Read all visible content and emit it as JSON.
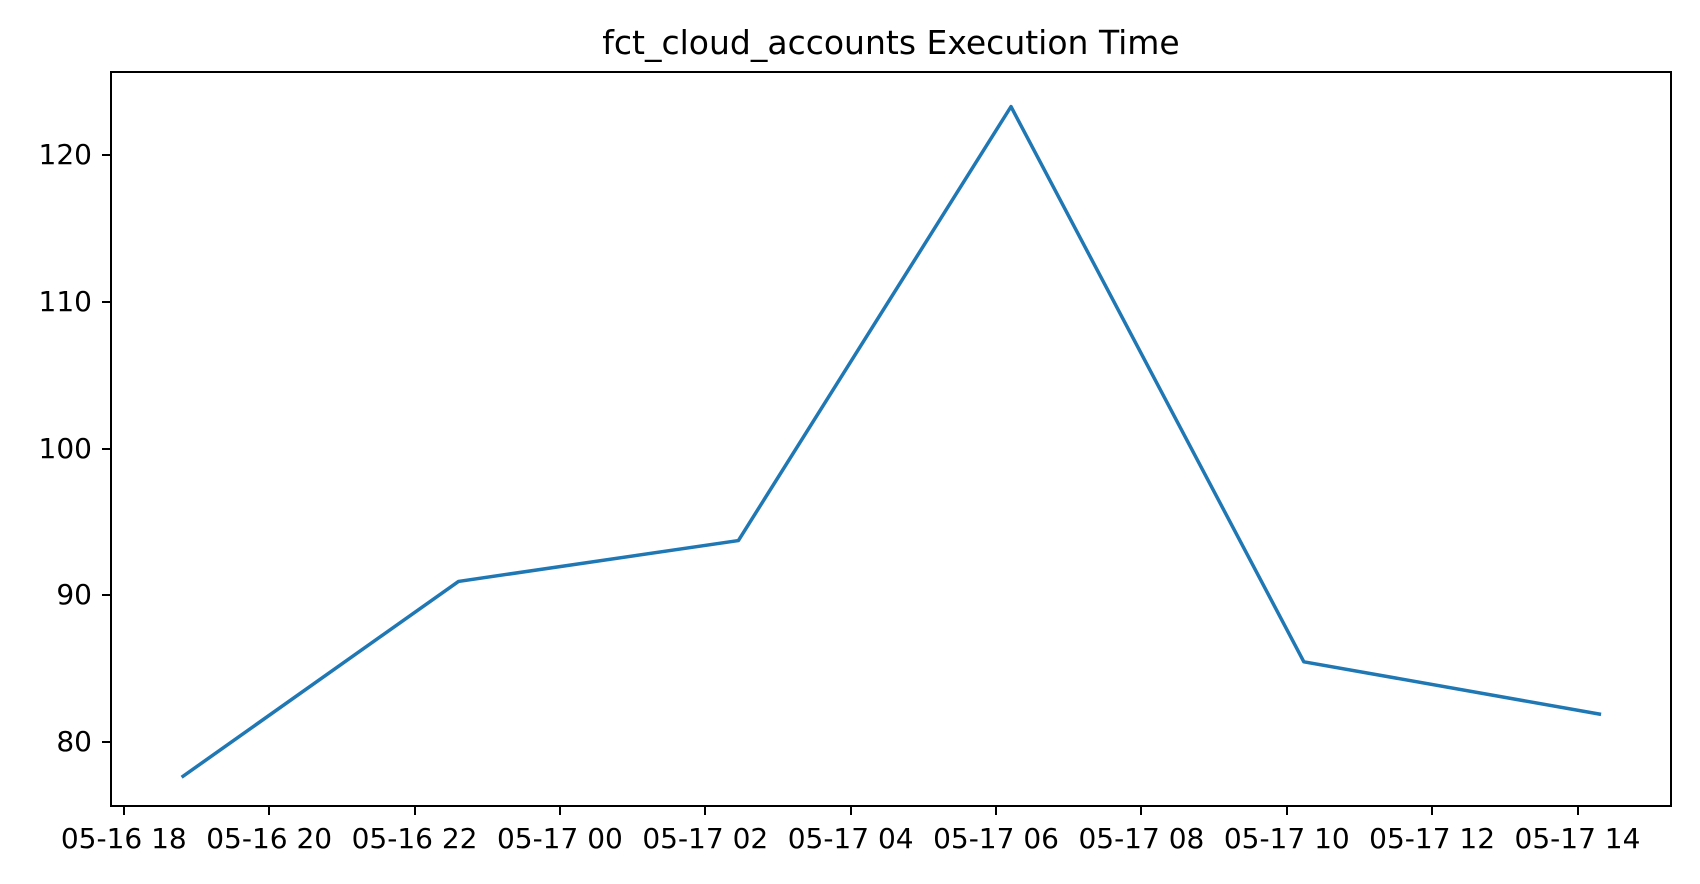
{
  "chart_data": {
    "type": "line",
    "title": "fct_cloud_accounts Execution Time",
    "xlabel": "",
    "ylabel": "",
    "grid": false,
    "legend_position": "none",
    "line_color": "#1f77b4",
    "line_width": 3.5,
    "x_unit": "hours since 05-16 18:00",
    "xlim_hours": [
      -0.19,
      21.3
    ],
    "ylim": [
      75.6,
      125.7
    ],
    "y_ticks": [
      80,
      90,
      100,
      110,
      120
    ],
    "x_ticks": [
      {
        "label": "05-16 18",
        "hours": 0
      },
      {
        "label": "05-16 20",
        "hours": 2
      },
      {
        "label": "05-16 22",
        "hours": 4
      },
      {
        "label": "05-17 00",
        "hours": 6
      },
      {
        "label": "05-17 02",
        "hours": 8
      },
      {
        "label": "05-17 04",
        "hours": 10
      },
      {
        "label": "05-17 06",
        "hours": 12
      },
      {
        "label": "05-17 08",
        "hours": 14
      },
      {
        "label": "05-17 10",
        "hours": 16
      },
      {
        "label": "05-17 12",
        "hours": 18
      },
      {
        "label": "05-17 14",
        "hours": 20
      }
    ],
    "series": [
      {
        "name": "execution_time",
        "x_hours": [
          0.77,
          4.59,
          8.45,
          12.21,
          16.25,
          20.35
        ],
        "values": [
          77.5,
          90.9,
          93.7,
          123.4,
          85.4,
          81.8
        ]
      }
    ]
  }
}
